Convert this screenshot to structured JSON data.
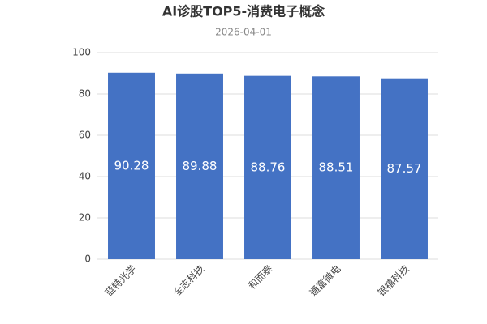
{
  "chart_data": {
    "type": "bar",
    "title": "AI诊股TOP5-消费电子概念",
    "subtitle": "2026-04-01",
    "categories": [
      "蓝特光学",
      "全志科技",
      "和而泰",
      "通富微电",
      "银禧科技"
    ],
    "values": [
      90.28,
      89.88,
      88.76,
      88.51,
      87.57
    ],
    "color": "#4472c4",
    "ylim": [
      0,
      100
    ],
    "yticks": [
      0,
      20,
      40,
      60,
      80,
      100
    ],
    "grid": true
  }
}
